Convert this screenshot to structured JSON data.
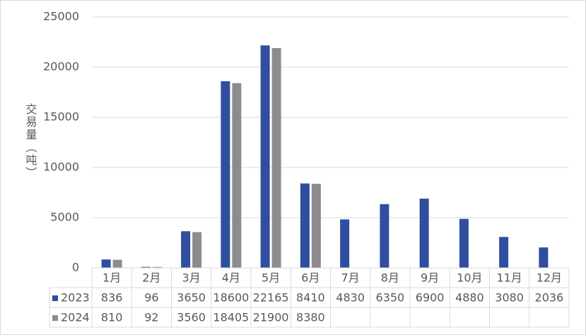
{
  "chart_data": {
    "type": "bar",
    "y_label": "交易量（吨）",
    "categories": [
      "1月",
      "2月",
      "3月",
      "4月",
      "5月",
      "6月",
      "7月",
      "8月",
      "9月",
      "10月",
      "11月",
      "12月"
    ],
    "series": [
      {
        "name": "2023",
        "color": "#2f4f9e",
        "values": [
          836,
          96,
          3650,
          18600,
          22165,
          8410,
          4830,
          6350,
          6900,
          4880,
          3080,
          2036
        ]
      },
      {
        "name": "2024",
        "color": "#8c8c8c",
        "values": [
          810,
          92,
          3560,
          18405,
          21900,
          8380,
          null,
          null,
          null,
          null,
          null,
          null
        ]
      }
    ],
    "ylim": [
      0,
      25000
    ],
    "yticks": [
      0,
      5000,
      10000,
      15000,
      20000,
      25000
    ],
    "grid": true,
    "data_table": true
  }
}
